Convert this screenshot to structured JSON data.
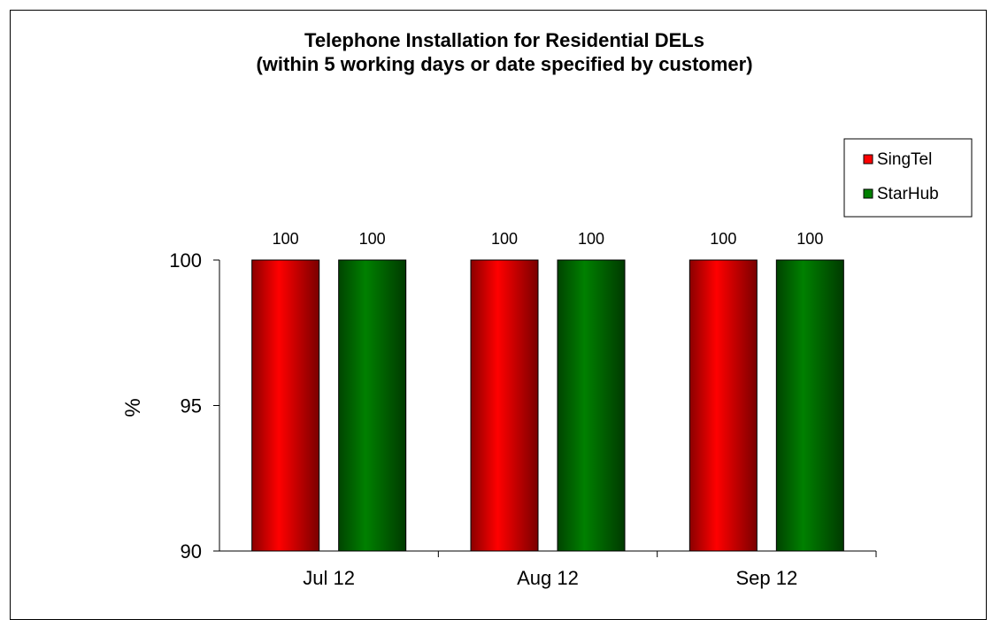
{
  "chart_data": {
    "type": "bar",
    "title": "Telephone Installation for Residential DELs",
    "subtitle": "(within 5 working days or date specified by customer)",
    "xlabel": "",
    "ylabel": "%",
    "categories": [
      "Jul 12",
      "Aug 12",
      "Sep 12"
    ],
    "series": [
      {
        "name": "SingTel",
        "values": [
          100,
          100,
          100
        ],
        "color": "#ff0000"
      },
      {
        "name": "StarHub",
        "values": [
          100,
          100,
          100
        ],
        "color": "#008000"
      }
    ],
    "data_labels": [
      [
        "100",
        "100",
        "100"
      ],
      [
        "100",
        "100",
        "100"
      ]
    ],
    "ylim": [
      90,
      100
    ],
    "yticks": [
      90,
      95,
      100
    ],
    "ytick_labels": [
      "90",
      "95",
      "100"
    ],
    "grid": false,
    "legend_position": "top-right"
  }
}
